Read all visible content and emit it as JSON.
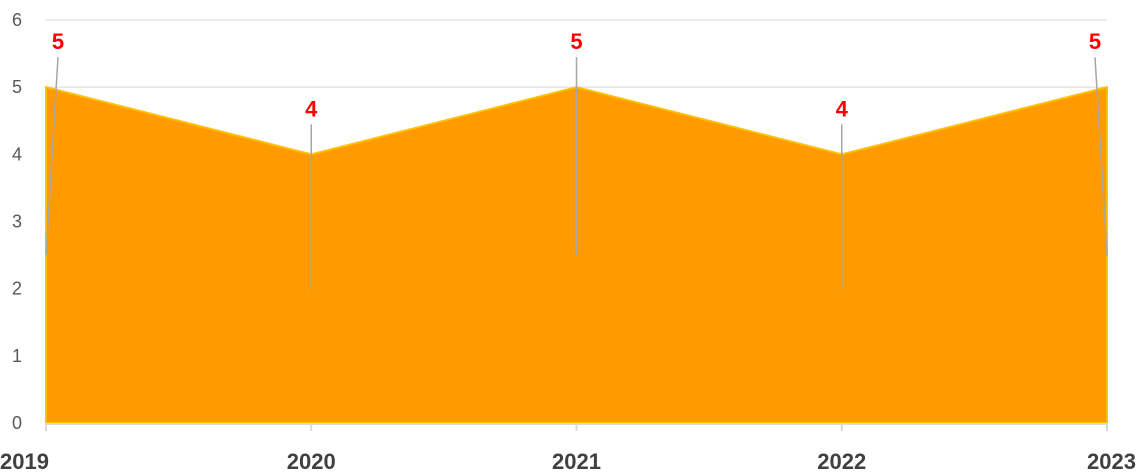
{
  "chart_data": {
    "type": "area",
    "title": "",
    "xlabel": "",
    "ylabel": "",
    "categories": [
      "2019",
      "2020",
      "2021",
      "2022",
      "2023"
    ],
    "values": [
      5,
      4,
      5,
      4,
      5
    ],
    "ylim": [
      0,
      6
    ],
    "yticks": [
      "0",
      "1",
      "2",
      "3",
      "4",
      "5",
      "6"
    ],
    "data_labels": [
      "5",
      "4",
      "5",
      "4",
      "5"
    ],
    "grid": true,
    "colors": {
      "area_fill": "#ff9a00",
      "area_line": "#ffc000",
      "data_label": "#ff0000",
      "leader_line": "#a6a6a6",
      "gridline": "#d9d9d9",
      "axis_line": "#d9d9d9"
    }
  }
}
